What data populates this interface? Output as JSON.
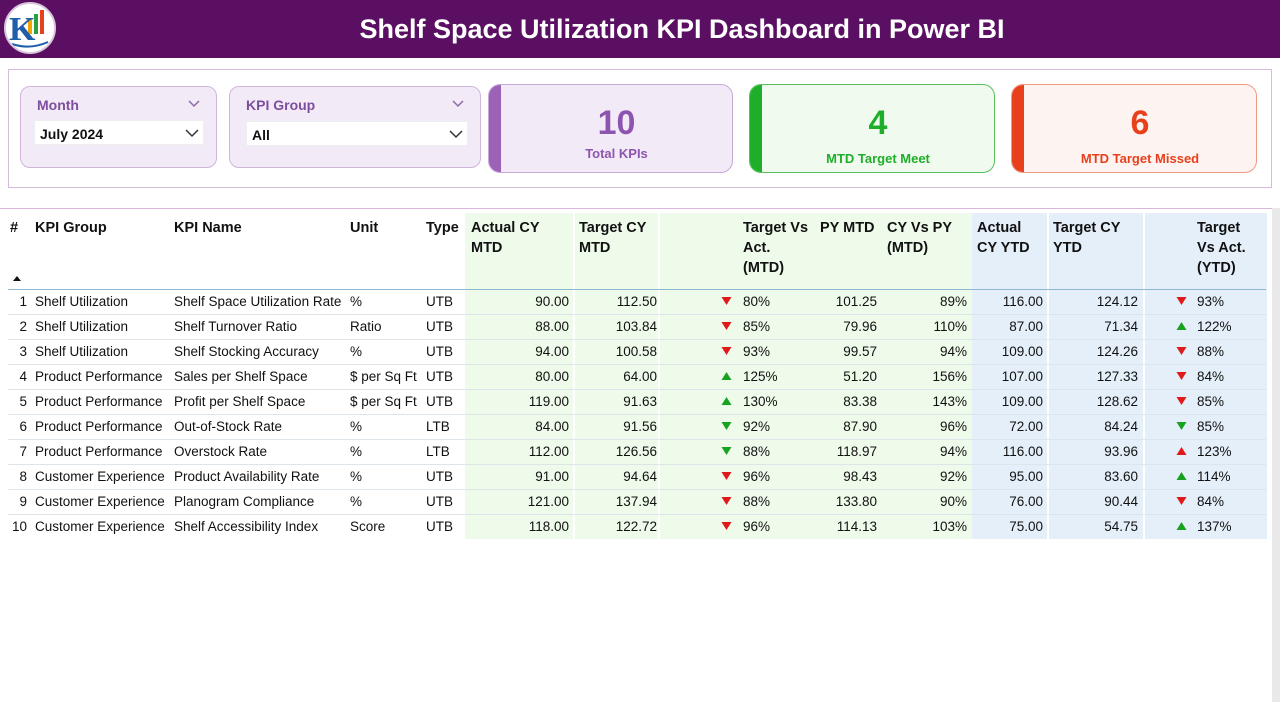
{
  "header": {
    "title": "Shelf Space Utilization KPI Dashboard in Power BI"
  },
  "slicers": {
    "month": {
      "label": "Month",
      "value": "July 2024"
    },
    "kpi_group": {
      "label": "KPI Group",
      "value": "All"
    }
  },
  "cards": {
    "total": {
      "value": "10",
      "label": "Total KPIs"
    },
    "meet": {
      "value": "4",
      "label": "MTD Target Meet"
    },
    "missed": {
      "value": "6",
      "label": "MTD Target Missed"
    }
  },
  "colors": {
    "brand": "#5a0f63",
    "purple": "#8e55b0",
    "green": "#1fae2a",
    "red": "#e8401c",
    "up": "#17a320",
    "down": "#e01919"
  },
  "table": {
    "headers": {
      "num": "#",
      "group": "KPI Group",
      "name": "KPI Name",
      "unit": "Unit",
      "type": "Type",
      "actual_mtd_1": "Actual CY",
      "actual_mtd_2": "MTD",
      "target_mtd_1": "Target CY",
      "target_mtd_2": "MTD",
      "tva_mtd_1": "Target Vs",
      "tva_mtd_2": "Act.",
      "tva_mtd_3": "(MTD)",
      "py_mtd": "PY MTD",
      "cyvspy_1": "CY Vs PY",
      "cyvspy_2": "(MTD)",
      "actual_ytd_1": "Actual",
      "actual_ytd_2": "CY YTD",
      "target_ytd_1": "Target CY",
      "target_ytd_2": "YTD",
      "tva_ytd_1": "Target",
      "tva_ytd_2": "Vs Act.",
      "tva_ytd_3": "(YTD)"
    },
    "rows": [
      {
        "num": "1",
        "group": "Shelf Utilization",
        "name": "Shelf Space Utilization Rate",
        "unit": "%",
        "type": "UTB",
        "actual_mtd": "90.00",
        "target_mtd": "112.50",
        "mtd_icon": "down",
        "tva_mtd": "80%",
        "py_mtd": "101.25",
        "cyvspy": "89%",
        "actual_ytd": "116.00",
        "target_ytd": "124.12",
        "ytd_icon": "down",
        "tva_ytd": "93%"
      },
      {
        "num": "2",
        "group": "Shelf Utilization",
        "name": "Shelf Turnover Ratio",
        "unit": "Ratio",
        "type": "UTB",
        "actual_mtd": "88.00",
        "target_mtd": "103.84",
        "mtd_icon": "down",
        "tva_mtd": "85%",
        "py_mtd": "79.96",
        "cyvspy": "110%",
        "actual_ytd": "87.00",
        "target_ytd": "71.34",
        "ytd_icon": "up",
        "tva_ytd": "122%"
      },
      {
        "num": "3",
        "group": "Shelf Utilization",
        "name": "Shelf Stocking Accuracy",
        "unit": "%",
        "type": "UTB",
        "actual_mtd": "94.00",
        "target_mtd": "100.58",
        "mtd_icon": "down",
        "tva_mtd": "93%",
        "py_mtd": "99.57",
        "cyvspy": "94%",
        "actual_ytd": "109.00",
        "target_ytd": "124.26",
        "ytd_icon": "down",
        "tva_ytd": "88%"
      },
      {
        "num": "4",
        "group": "Product Performance",
        "name": "Sales per Shelf Space",
        "unit": "$ per Sq Ft",
        "type": "UTB",
        "actual_mtd": "80.00",
        "target_mtd": "64.00",
        "mtd_icon": "up",
        "tva_mtd": "125%",
        "py_mtd": "51.20",
        "cyvspy": "156%",
        "actual_ytd": "107.00",
        "target_ytd": "127.33",
        "ytd_icon": "down",
        "tva_ytd": "84%"
      },
      {
        "num": "5",
        "group": "Product Performance",
        "name": "Profit per Shelf Space",
        "unit": "$ per Sq Ft",
        "type": "UTB",
        "actual_mtd": "119.00",
        "target_mtd": "91.63",
        "mtd_icon": "up",
        "tva_mtd": "130%",
        "py_mtd": "83.38",
        "cyvspy": "143%",
        "actual_ytd": "109.00",
        "target_ytd": "128.62",
        "ytd_icon": "down",
        "tva_ytd": "85%"
      },
      {
        "num": "6",
        "group": "Product Performance",
        "name": "Out-of-Stock Rate",
        "unit": "%",
        "type": "LTB",
        "actual_mtd": "84.00",
        "target_mtd": "91.56",
        "mtd_icon": "down-green",
        "tva_mtd": "92%",
        "py_mtd": "87.90",
        "cyvspy": "96%",
        "actual_ytd": "72.00",
        "target_ytd": "84.24",
        "ytd_icon": "down-green",
        "tva_ytd": "85%"
      },
      {
        "num": "7",
        "group": "Product Performance",
        "name": "Overstock Rate",
        "unit": "%",
        "type": "LTB",
        "actual_mtd": "112.00",
        "target_mtd": "126.56",
        "mtd_icon": "down-green",
        "tva_mtd": "88%",
        "py_mtd": "118.97",
        "cyvspy": "94%",
        "actual_ytd": "116.00",
        "target_ytd": "93.96",
        "ytd_icon": "up-red",
        "tva_ytd": "123%"
      },
      {
        "num": "8",
        "group": "Customer Experience",
        "name": "Product Availability Rate",
        "unit": "%",
        "type": "UTB",
        "actual_mtd": "91.00",
        "target_mtd": "94.64",
        "mtd_icon": "down",
        "tva_mtd": "96%",
        "py_mtd": "98.43",
        "cyvspy": "92%",
        "actual_ytd": "95.00",
        "target_ytd": "83.60",
        "ytd_icon": "up",
        "tva_ytd": "114%"
      },
      {
        "num": "9",
        "group": "Customer Experience",
        "name": "Planogram Compliance",
        "unit": "%",
        "type": "UTB",
        "actual_mtd": "121.00",
        "target_mtd": "137.94",
        "mtd_icon": "down",
        "tva_mtd": "88%",
        "py_mtd": "133.80",
        "cyvspy": "90%",
        "actual_ytd": "76.00",
        "target_ytd": "90.44",
        "ytd_icon": "down",
        "tva_ytd": "84%"
      },
      {
        "num": "10",
        "group": "Customer Experience",
        "name": "Shelf Accessibility Index",
        "unit": "Score",
        "type": "UTB",
        "actual_mtd": "118.00",
        "target_mtd": "122.72",
        "mtd_icon": "down",
        "tva_mtd": "96%",
        "py_mtd": "114.13",
        "cyvspy": "103%",
        "actual_ytd": "75.00",
        "target_ytd": "54.75",
        "ytd_icon": "up",
        "tva_ytd": "137%"
      }
    ]
  }
}
